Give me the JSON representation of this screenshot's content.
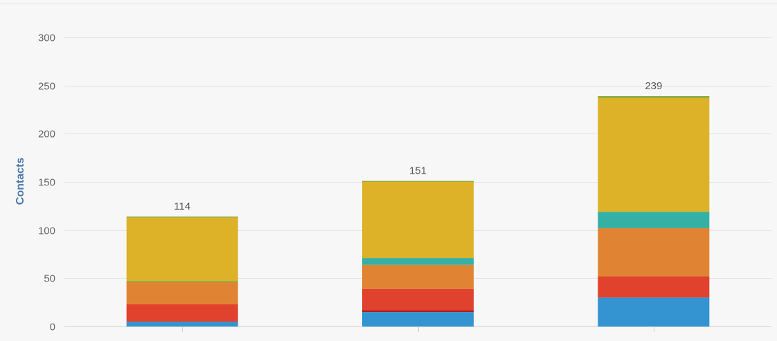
{
  "chart_data": {
    "type": "bar",
    "stacked": true,
    "title": "",
    "xlabel": "",
    "ylabel": "Contacts",
    "ylim": [
      0,
      300
    ],
    "yticks": [
      0,
      50,
      100,
      150,
      200,
      250,
      300
    ],
    "categories": [
      "",
      "",
      ""
    ],
    "totals": [
      114,
      151,
      239
    ],
    "grid": true,
    "legend": "none",
    "series": [
      {
        "color": "#3394d1",
        "values": [
          5,
          15,
          30
        ]
      },
      {
        "color": "#b01c1c",
        "values": [
          0,
          2,
          0
        ]
      },
      {
        "color": "#e0422e",
        "values": [
          18,
          22,
          22
        ]
      },
      {
        "color": "#e08433",
        "values": [
          23,
          25,
          50
        ]
      },
      {
        "color": "#66aa55",
        "values": [
          1,
          0,
          0
        ]
      },
      {
        "color": "#34b0a5",
        "values": [
          0,
          7,
          17
        ]
      },
      {
        "color": "#ddb228",
        "values": [
          66,
          79,
          118
        ]
      },
      {
        "color": "#8ea83a",
        "values": [
          1,
          1,
          2
        ]
      }
    ]
  }
}
